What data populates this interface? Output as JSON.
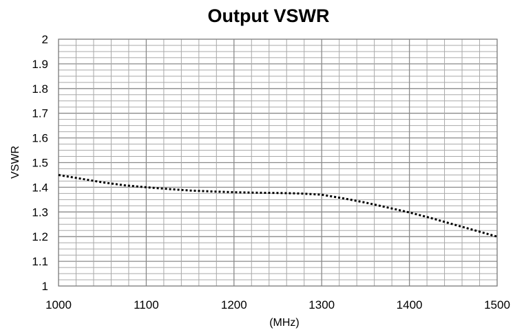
{
  "chart_data": {
    "type": "line",
    "title": "Output VSWR",
    "xlabel": "(MHz)",
    "ylabel": "VSWR",
    "xlim": [
      1000,
      1500
    ],
    "ylim": [
      1,
      2
    ],
    "x_ticks": [
      "1000",
      "1100",
      "1200",
      "1300",
      "1400",
      "1500"
    ],
    "y_ticks": [
      "1",
      "1.1",
      "1.2",
      "1.3",
      "1.4",
      "1.5",
      "1.6",
      "1.7",
      "1.8",
      "1.9",
      "2"
    ],
    "grid": true,
    "legend": "none",
    "series": [
      {
        "x": [
          1000,
          1025,
          1050,
          1075,
          1100,
          1125,
          1150,
          1175,
          1200,
          1225,
          1250,
          1275,
          1300,
          1325,
          1350,
          1375,
          1400,
          1425,
          1450,
          1475,
          1500
        ],
        "y": [
          1.45,
          1.435,
          1.42,
          1.408,
          1.4,
          1.393,
          1.387,
          1.383,
          1.38,
          1.378,
          1.377,
          1.375,
          1.37,
          1.355,
          1.338,
          1.318,
          1.298,
          1.275,
          1.25,
          1.225,
          1.2
        ],
        "color": "#000000",
        "style": "dotted"
      }
    ]
  }
}
